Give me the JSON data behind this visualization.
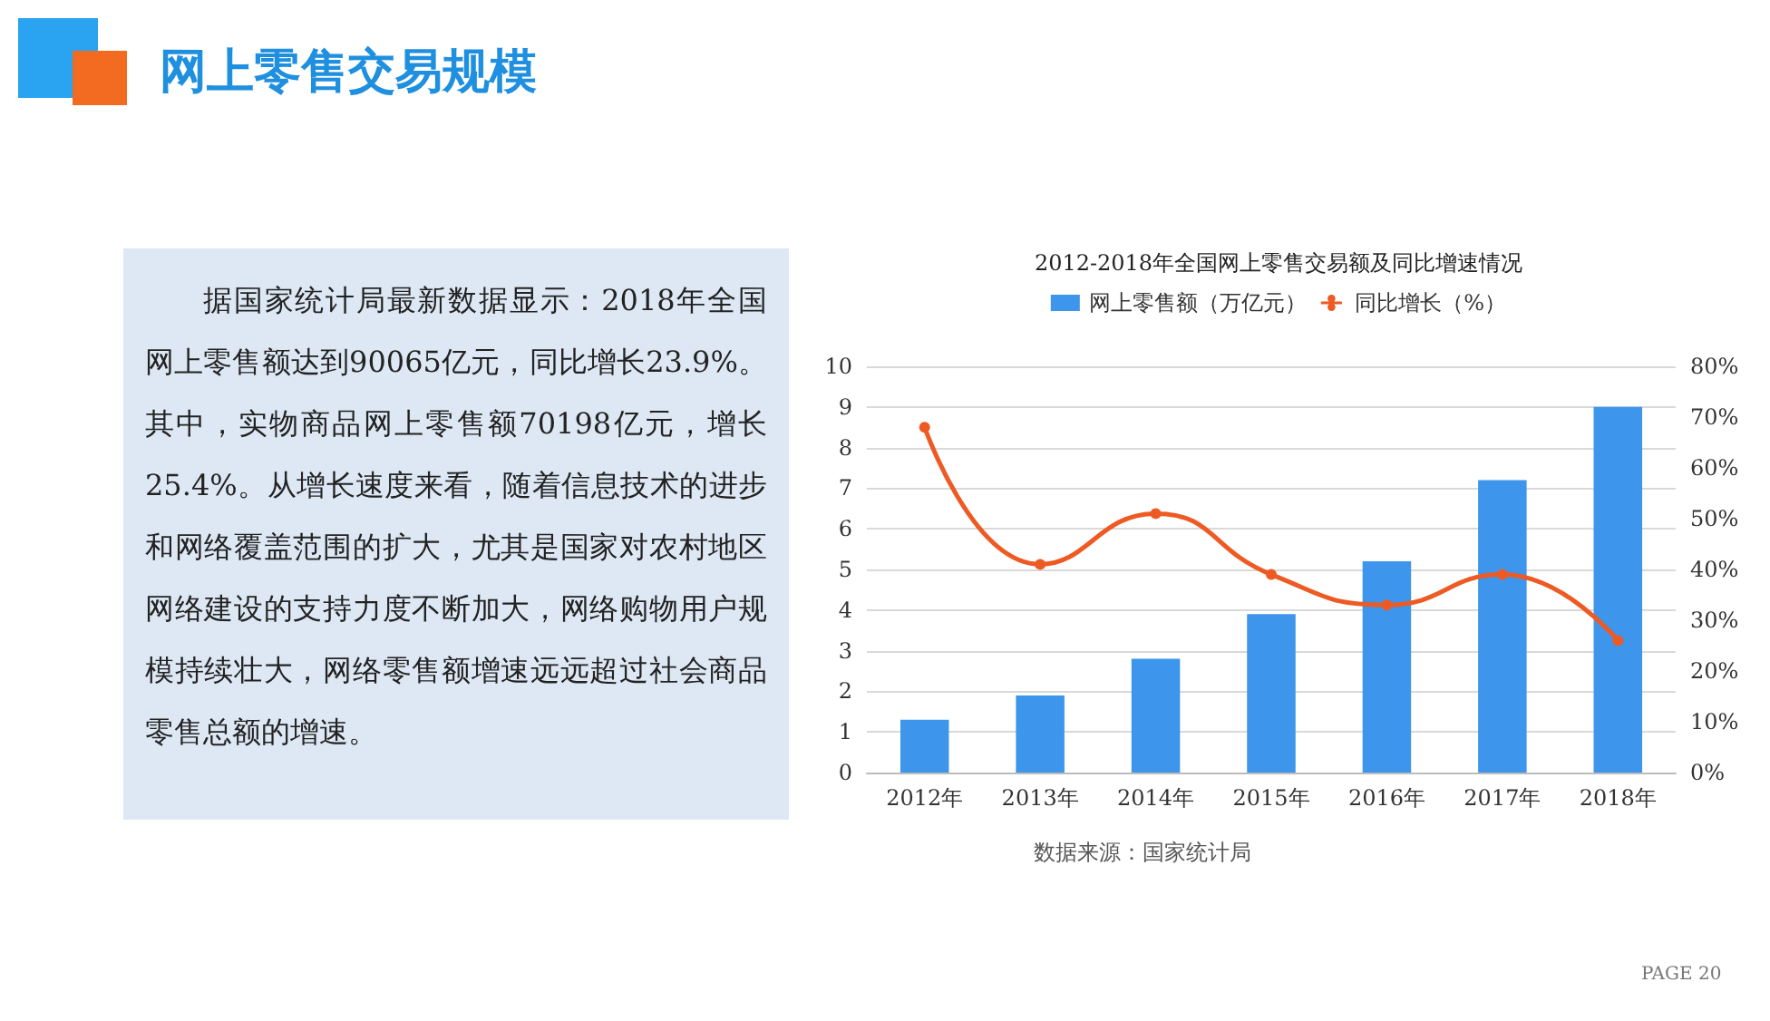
{
  "chart_data": {
    "type": "bar",
    "title": "网上零售交易规模",
    "subtitle": "2012-2018年全国网上零售交易额及同比增速情况",
    "categories": [
      "2012年",
      "2013年",
      "2014年",
      "2015年",
      "2016年",
      "2017年",
      "2018年"
    ],
    "series": [
      {
        "name": "网上零售额（万亿元）",
        "color": "#3d96ec",
        "values": [
          1.3,
          1.9,
          2.8,
          3.9,
          5.2,
          7.2,
          9.0
        ]
      },
      {
        "name": "同比增长（%）",
        "type": "line",
        "axis": "y2",
        "color": "#ee5a24",
        "marker": "circle",
        "values": [
          68,
          41,
          51,
          39,
          33,
          39,
          26
        ]
      }
    ],
    "ylim": [
      0,
      10
    ],
    "yticks": [
      0,
      1,
      2,
      3,
      4,
      5,
      6,
      7,
      8,
      9,
      10
    ],
    "y2lim": [
      0,
      80
    ],
    "y2ticks": [
      {
        "value": 0,
        "label": "0%"
      },
      {
        "value": 10,
        "label": "10%"
      },
      {
        "value": 20,
        "label": "20%"
      },
      {
        "value": 30,
        "label": "30%"
      },
      {
        "value": 40,
        "label": "40%"
      },
      {
        "value": 50,
        "label": "50%"
      },
      {
        "value": 60,
        "label": "60%"
      },
      {
        "value": 70,
        "label": "70%"
      },
      {
        "value": 80,
        "label": "80%"
      }
    ],
    "grid": "y",
    "legend": "top",
    "annotations": [
      "据国家统计局最新数据显示：2018年全国网上零售额达到90065亿元，同比增长23.9%。其中，实物商品网上零售额70198亿元，增长25.4%。从增长速度来看，随着信息技术的进步和网络覆盖范围的扩大，尤其是国家对农村地区网络建设的支持力度不断加大，网络购物用户规模持续壮大，网络零售额增速远远超过社会商品零售总额的增速。",
      "数据来源：国家统计局",
      "PAGE 20"
    ]
  }
}
